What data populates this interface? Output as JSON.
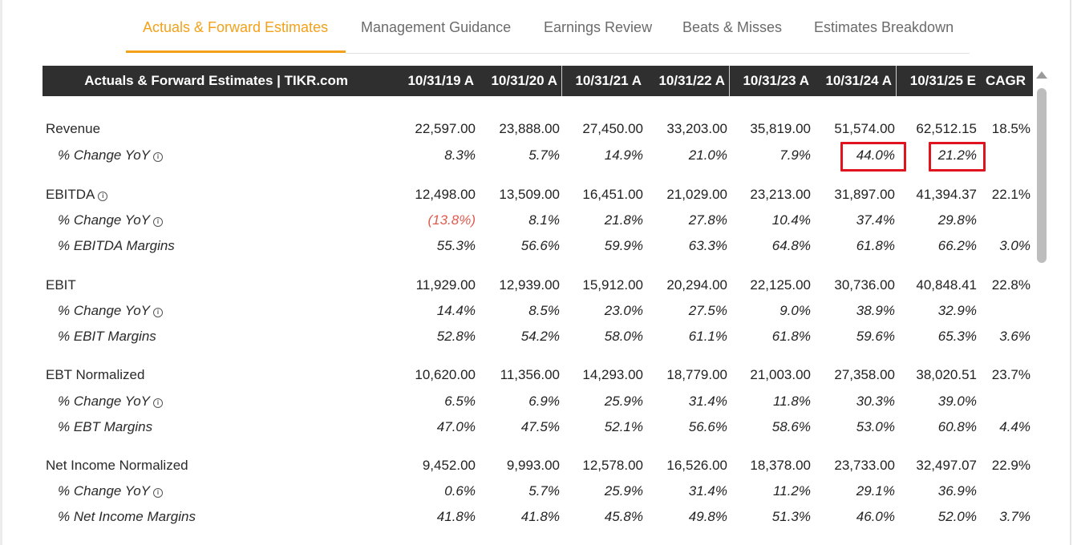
{
  "tabs": [
    {
      "label": "Actuals & Forward Estimates",
      "active": true
    },
    {
      "label": "Management Guidance",
      "active": false
    },
    {
      "label": "Earnings Review",
      "active": false
    },
    {
      "label": "Beats & Misses",
      "active": false
    },
    {
      "label": "Estimates Breakdown",
      "active": false
    }
  ],
  "colors": {
    "accent": "#f4a11a",
    "header_bg": "#2f2f2f",
    "negative": "#e05a4e",
    "highlight": "#e0141e"
  },
  "table": {
    "title": "Actuals & Forward Estimates | TIKR.com",
    "columns": [
      "10/31/19 A",
      "10/31/20 A",
      "10/31/21 A",
      "10/31/22 A",
      "10/31/23 A",
      "10/31/24 A",
      "10/31/25 E",
      "CAGR"
    ],
    "rows": [
      {
        "label": "Revenue",
        "type": "main",
        "values": [
          "22,597.00",
          "23,888.00",
          "27,450.00",
          "33,203.00",
          "35,819.00",
          "51,574.00",
          "62,512.15",
          "18.5%"
        ]
      },
      {
        "label": "% Change YoY",
        "type": "sub",
        "info": true,
        "values": [
          "8.3%",
          "5.7%",
          "14.9%",
          "21.0%",
          "7.9%",
          "44.0%",
          "21.2%",
          ""
        ],
        "highlighted": [
          5,
          6
        ]
      },
      {
        "label": "EBITDA",
        "type": "main",
        "info": true,
        "values": [
          "12,498.00",
          "13,509.00",
          "16,451.00",
          "21,029.00",
          "23,213.00",
          "31,897.00",
          "41,394.37",
          "22.1%"
        ]
      },
      {
        "label": "% Change YoY",
        "type": "sub",
        "info": true,
        "values": [
          "(13.8%)",
          "8.1%",
          "21.8%",
          "27.8%",
          "10.4%",
          "37.4%",
          "29.8%",
          ""
        ],
        "negative": [
          0
        ]
      },
      {
        "label": "% EBITDA Margins",
        "type": "sub",
        "values": [
          "55.3%",
          "56.6%",
          "59.9%",
          "63.3%",
          "64.8%",
          "61.8%",
          "66.2%",
          "3.0%"
        ]
      },
      {
        "label": "EBIT",
        "type": "main",
        "values": [
          "11,929.00",
          "12,939.00",
          "15,912.00",
          "20,294.00",
          "22,125.00",
          "30,736.00",
          "40,848.41",
          "22.8%"
        ]
      },
      {
        "label": "% Change YoY",
        "type": "sub",
        "info": true,
        "values": [
          "14.4%",
          "8.5%",
          "23.0%",
          "27.5%",
          "9.0%",
          "38.9%",
          "32.9%",
          ""
        ]
      },
      {
        "label": "% EBIT Margins",
        "type": "sub",
        "values": [
          "52.8%",
          "54.2%",
          "58.0%",
          "61.1%",
          "61.8%",
          "59.6%",
          "65.3%",
          "3.6%"
        ]
      },
      {
        "label": "EBT Normalized",
        "type": "main",
        "values": [
          "10,620.00",
          "11,356.00",
          "14,293.00",
          "18,779.00",
          "21,003.00",
          "27,358.00",
          "38,020.51",
          "23.7%"
        ]
      },
      {
        "label": "% Change YoY",
        "type": "sub",
        "info": true,
        "values": [
          "6.5%",
          "6.9%",
          "25.9%",
          "31.4%",
          "11.8%",
          "30.3%",
          "39.0%",
          ""
        ]
      },
      {
        "label": "% EBT Margins",
        "type": "sub",
        "values": [
          "47.0%",
          "47.5%",
          "52.1%",
          "56.6%",
          "58.6%",
          "53.0%",
          "60.8%",
          "4.4%"
        ]
      },
      {
        "label": "Net Income Normalized",
        "type": "main",
        "values": [
          "9,452.00",
          "9,993.00",
          "12,578.00",
          "16,526.00",
          "18,378.00",
          "23,733.00",
          "32,497.07",
          "22.9%"
        ]
      },
      {
        "label": "% Change YoY",
        "type": "sub",
        "info": true,
        "values": [
          "0.6%",
          "5.7%",
          "25.9%",
          "31.4%",
          "11.2%",
          "29.1%",
          "36.9%",
          ""
        ]
      },
      {
        "label": "% Net Income Margins",
        "type": "sub",
        "values": [
          "41.8%",
          "41.8%",
          "45.8%",
          "49.8%",
          "51.3%",
          "46.0%",
          "52.0%",
          "3.7%"
        ]
      }
    ]
  }
}
